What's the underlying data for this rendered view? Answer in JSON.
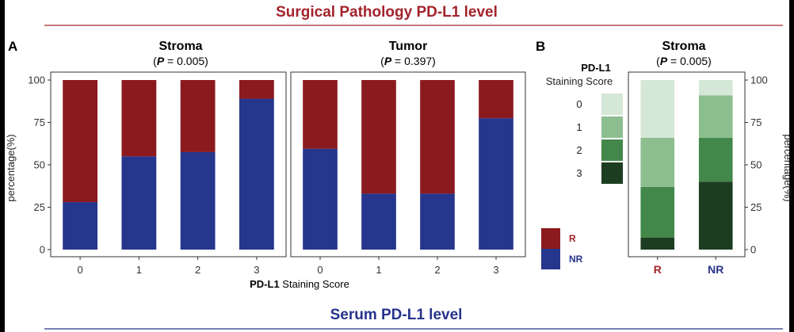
{
  "figure": {
    "heading_top": "Surgical Pathology PD-L1 level",
    "heading_bottom": "Serum PD-L1 level",
    "panel_a_label": "A",
    "panel_b_label": "B",
    "colors": {
      "heading_top": "#a3232b",
      "heading_bottom": "#27348b",
      "R": "#8b1a1f",
      "NR": "#25368c",
      "score_0": "#d5e7d6",
      "score_1": "#8dbe8f",
      "score_2": "#43884a",
      "score_3": "#1d3d22"
    }
  },
  "chart_data": [
    {
      "type": "bar",
      "stacked": true,
      "title": "Stroma",
      "subtitle_label": "P",
      "subtitle_value": " = 0.005)",
      "xlabel_bold": "PD-L1",
      "xlabel_rest": " Staining Score",
      "ylabel": "percentage(%)",
      "categories": [
        "0",
        "1",
        "2",
        "3"
      ],
      "ylim": [
        0,
        100
      ],
      "yticks": [
        "0",
        "25",
        "50",
        "75",
        "100"
      ],
      "series": [
        {
          "name": "NR",
          "values": [
            28,
            55,
            57.5,
            89
          ]
        },
        {
          "name": "R",
          "values": [
            72,
            45,
            42.5,
            11
          ]
        }
      ]
    },
    {
      "type": "bar",
      "stacked": true,
      "title": "Tumor",
      "subtitle_label": "P",
      "subtitle_value": " = 0.397)",
      "categories": [
        "0",
        "1",
        "2",
        "3"
      ],
      "ylim": [
        0,
        100
      ],
      "series": [
        {
          "name": "NR",
          "values": [
            59.5,
            33,
            33,
            77.5
          ]
        },
        {
          "name": "R",
          "values": [
            40.5,
            67,
            67,
            22.5
          ]
        }
      ]
    },
    {
      "type": "bar",
      "stacked": true,
      "title": "Stroma",
      "subtitle_label": "P",
      "subtitle_value": " = 0.005)",
      "ylabel": "percentage(%)",
      "categories": [
        "R",
        "NR"
      ],
      "category_colors": [
        "#a3232b",
        "#27348b"
      ],
      "ylim": [
        0,
        100
      ],
      "yticks": [
        "0",
        "25",
        "50",
        "75",
        "100"
      ],
      "legend_title": "PD-L1",
      "legend_subtitle": "Staining Score",
      "series": [
        {
          "name": "3",
          "values": [
            7,
            40
          ]
        },
        {
          "name": "2",
          "values": [
            30,
            26
          ]
        },
        {
          "name": "1",
          "values": [
            29,
            25
          ]
        },
        {
          "name": "0",
          "values": [
            34,
            9
          ]
        }
      ]
    }
  ]
}
